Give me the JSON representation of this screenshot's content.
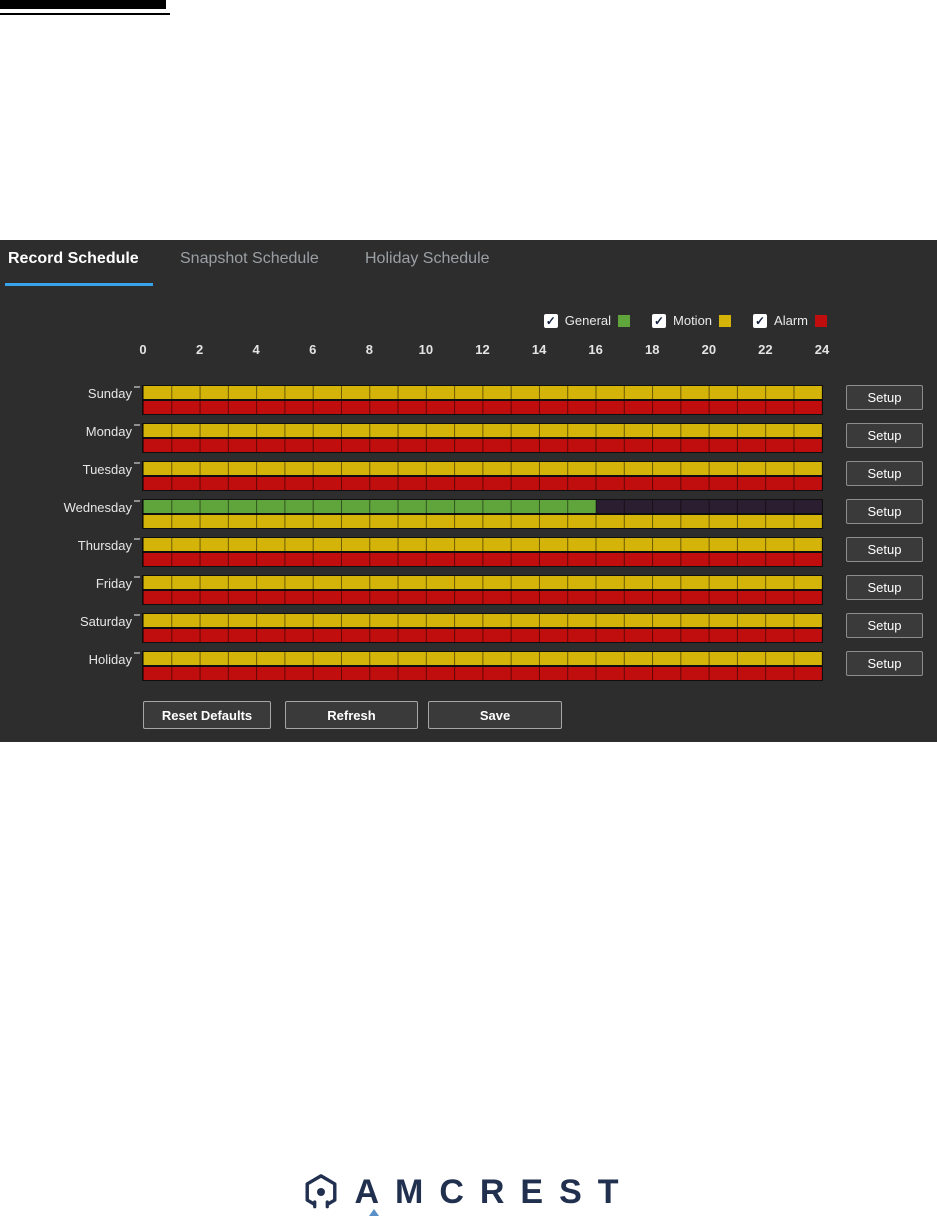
{
  "tabs": [
    {
      "label": "Record Schedule",
      "active": true
    },
    {
      "label": "Snapshot Schedule",
      "active": false
    },
    {
      "label": "Holiday Schedule",
      "active": false
    }
  ],
  "legend": {
    "check_glyph": "✓",
    "items": [
      {
        "label": "General",
        "color": "#60a53c",
        "checked": true
      },
      {
        "label": "Motion",
        "color": "#d4b409",
        "checked": true
      },
      {
        "label": "Alarm",
        "color": "#c00d0d",
        "checked": true
      }
    ]
  },
  "time_axis": {
    "labels": [
      0,
      2,
      4,
      6,
      8,
      10,
      12,
      14,
      16,
      18,
      20,
      22,
      24
    ],
    "min_hour": 0,
    "max_hour": 24
  },
  "bar_colors": {
    "general": "#60a53c",
    "motion": "#d4b409",
    "alarm": "#c00d0d",
    "none": "#2c1e31"
  },
  "schedule": {
    "setup_label": "Setup",
    "rows": [
      {
        "day": "Sunday",
        "top": [
          {
            "type": "motion",
            "start": 0,
            "end": 24
          }
        ],
        "bottom": [
          {
            "type": "alarm",
            "start": 0,
            "end": 24
          }
        ]
      },
      {
        "day": "Monday",
        "top": [
          {
            "type": "motion",
            "start": 0,
            "end": 24
          }
        ],
        "bottom": [
          {
            "type": "alarm",
            "start": 0,
            "end": 24
          }
        ]
      },
      {
        "day": "Tuesday",
        "top": [
          {
            "type": "motion",
            "start": 0,
            "end": 24
          }
        ],
        "bottom": [
          {
            "type": "alarm",
            "start": 0,
            "end": 24
          }
        ]
      },
      {
        "day": "Wednesday",
        "top": [
          {
            "type": "general",
            "start": 0,
            "end": 16
          },
          {
            "type": "none",
            "start": 16,
            "end": 24
          }
        ],
        "bottom": [
          {
            "type": "motion",
            "start": 0,
            "end": 24
          }
        ]
      },
      {
        "day": "Thursday",
        "top": [
          {
            "type": "motion",
            "start": 0,
            "end": 24
          }
        ],
        "bottom": [
          {
            "type": "alarm",
            "start": 0,
            "end": 24
          }
        ]
      },
      {
        "day": "Friday",
        "top": [
          {
            "type": "motion",
            "start": 0,
            "end": 24
          }
        ],
        "bottom": [
          {
            "type": "alarm",
            "start": 0,
            "end": 24
          }
        ]
      },
      {
        "day": "Saturday",
        "top": [
          {
            "type": "motion",
            "start": 0,
            "end": 24
          }
        ],
        "bottom": [
          {
            "type": "alarm",
            "start": 0,
            "end": 24
          }
        ]
      },
      {
        "day": "Holiday",
        "top": [
          {
            "type": "motion",
            "start": 0,
            "end": 24
          }
        ],
        "bottom": [
          {
            "type": "alarm",
            "start": 0,
            "end": 24
          }
        ]
      }
    ]
  },
  "buttons": {
    "reset_defaults": "Reset Defaults",
    "refresh": "Refresh",
    "save": "Save"
  },
  "footer": {
    "brand": "AMCREST"
  }
}
